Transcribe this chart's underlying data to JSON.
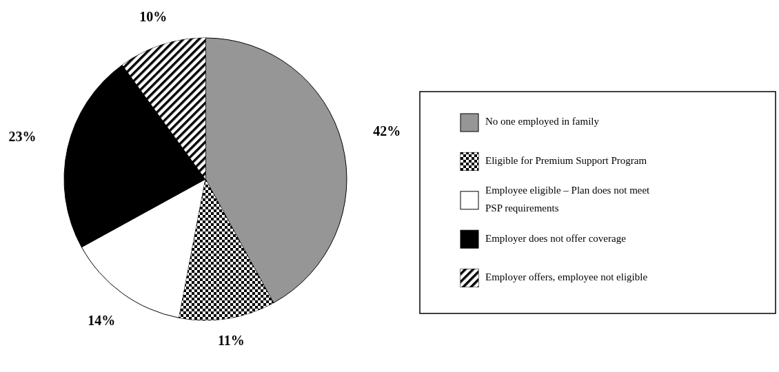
{
  "chart_data": {
    "type": "pie",
    "categories": [
      "No one employed in family",
      "Eligible for Premium Support Program",
      "Employee eligible – Plan does not meet PSP requirements",
      "Employer does not offer coverage",
      "Employer offers, employee not eligible"
    ],
    "values": [
      42,
      11,
      14,
      23,
      10
    ],
    "colors": [
      "#969696",
      "#000000",
      "#ffffff",
      "#000000",
      "#000000"
    ],
    "value_labels": [
      "42%",
      "11%",
      "14%",
      "23%",
      "10%"
    ],
    "legend": "right"
  }
}
